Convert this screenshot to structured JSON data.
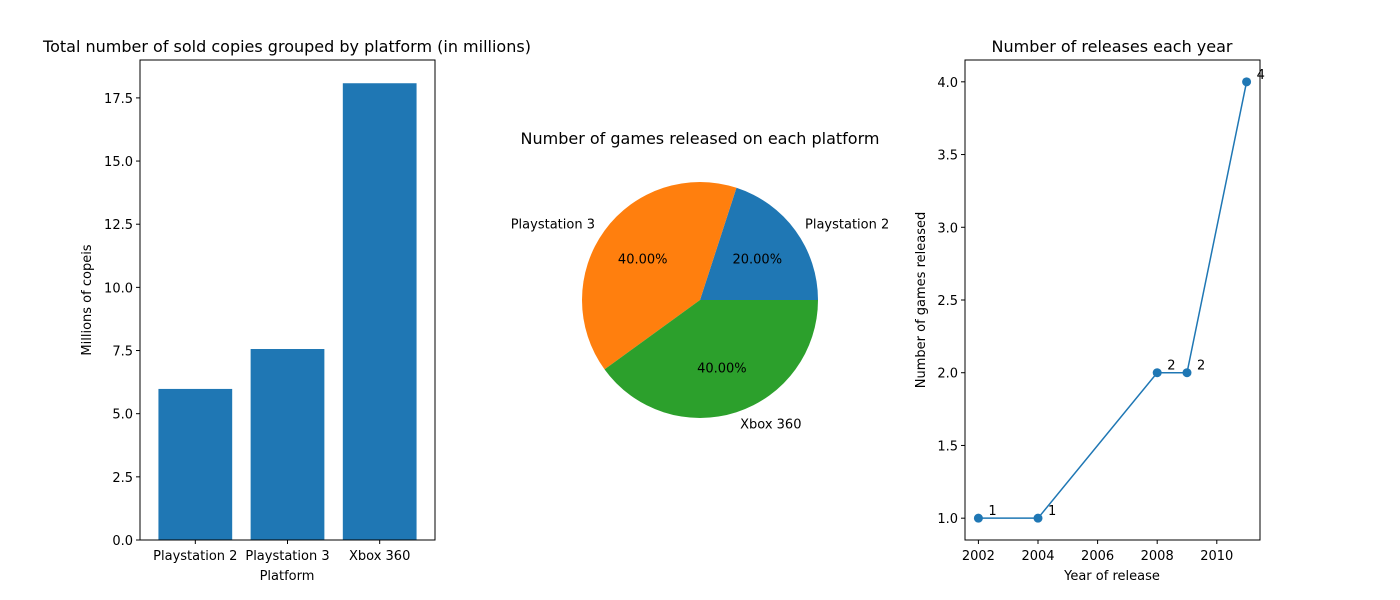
{
  "chart_data": [
    {
      "type": "bar",
      "title": "Total number of sold copies grouped by platform (in millions)",
      "xlabel": "Platform",
      "ylabel": "Millions of copeis",
      "categories": [
        "Playstation 2",
        "Playstation 3",
        "Xbox 360"
      ],
      "values": [
        5.98,
        7.56,
        18.08
      ],
      "ylim": [
        0,
        19.0
      ],
      "yticks": [
        0.0,
        2.5,
        5.0,
        7.5,
        10.0,
        12.5,
        15.0,
        17.5
      ],
      "ytick_labels": [
        "0.0",
        "2.5",
        "5.0",
        "7.5",
        "10.0",
        "12.5",
        "15.0",
        "17.5"
      ],
      "color": "#1f77b4",
      "grid": false
    },
    {
      "type": "pie",
      "title": "Number of games released on each platform",
      "labels": [
        "Playstation 2",
        "Playstation 3",
        "Xbox 360"
      ],
      "values": [
        20,
        40,
        40
      ],
      "value_labels": [
        "20.00%",
        "40.00%",
        "40.00%"
      ],
      "colors": [
        "#1f77b4",
        "#ff7f0e",
        "#2ca02c"
      ]
    },
    {
      "type": "line",
      "title": "Number of releases each year",
      "xlabel": "Year of release",
      "ylabel": "Number of games released",
      "x": [
        2002,
        2004,
        2008,
        2009,
        2011
      ],
      "y": [
        1,
        1,
        2,
        2,
        4
      ],
      "point_labels": [
        "1",
        "1",
        "2",
        "2",
        "4"
      ],
      "xlim": [
        2001.55,
        2011.45
      ],
      "ylim": [
        0.85,
        4.15
      ],
      "xticks": [
        2002,
        2004,
        2006,
        2008,
        2010
      ],
      "xtick_labels": [
        "2002",
        "2004",
        "2006",
        "2008",
        "2010"
      ],
      "yticks": [
        1.0,
        1.5,
        2.0,
        2.5,
        3.0,
        3.5,
        4.0
      ],
      "ytick_labels": [
        "1.0",
        "1.5",
        "2.0",
        "2.5",
        "3.0",
        "3.5",
        "4.0"
      ],
      "color": "#1f77b4",
      "grid": false
    }
  ]
}
